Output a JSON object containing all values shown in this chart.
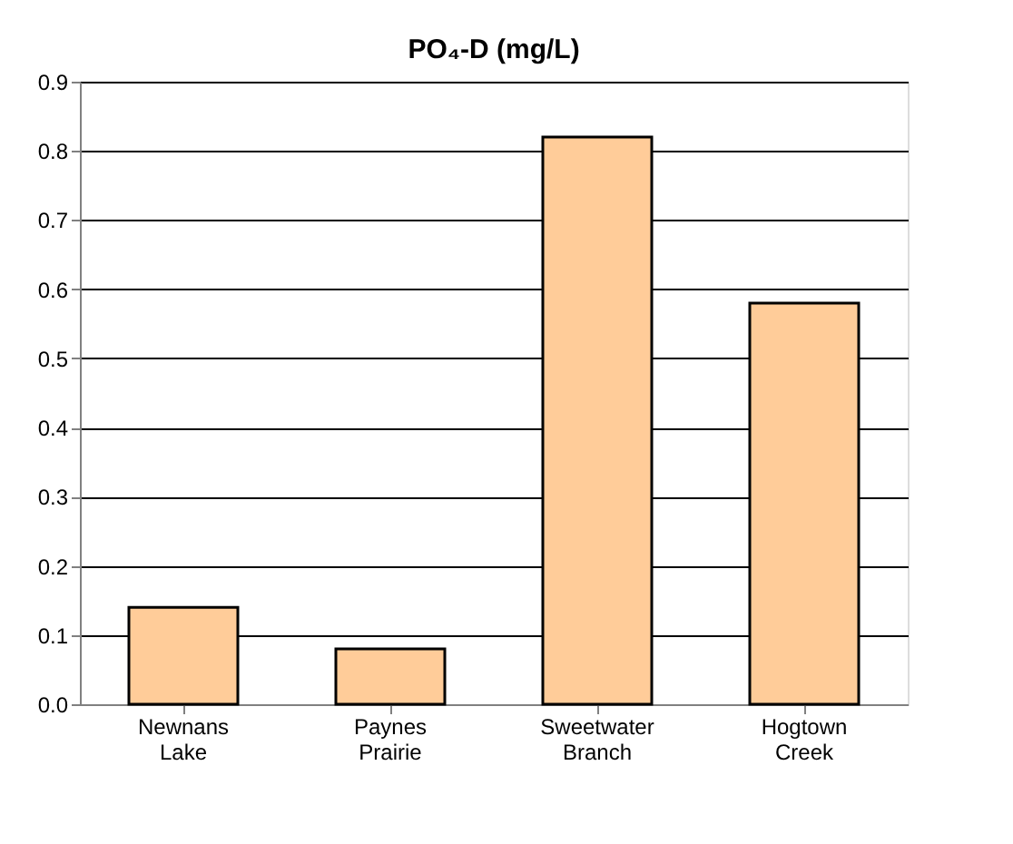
{
  "chart_data": {
    "type": "bar",
    "title": "PO₄-D (mg/L)",
    "categories": [
      "Newnans Lake",
      "Paynes Prairie",
      "Sweetwater Branch",
      "Hogtown Creek"
    ],
    "values": [
      0.14,
      0.08,
      0.82,
      0.58
    ],
    "color": "#ffcc99",
    "ylim": [
      0,
      0.9
    ],
    "yticks": [
      {
        "value": 0,
        "label": "0.0"
      },
      0.1,
      0.2,
      0.3,
      0.4,
      0.5,
      0.6,
      0.7,
      0.8,
      0.9
    ],
    "grid": "y",
    "legend": false
  }
}
